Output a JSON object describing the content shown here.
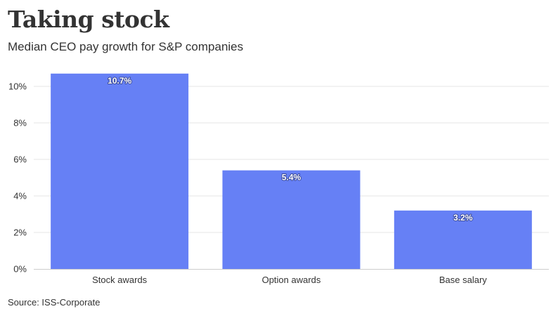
{
  "title": "Taking stock",
  "subtitle": "Median CEO pay growth for S&P companies",
  "source": "Source: ISS-Corporate",
  "colors": {
    "bar": "#6680f5",
    "gridline": "#e6e6e6",
    "baseline": "#cccccc",
    "text": "#333333"
  },
  "chart_data": {
    "type": "bar",
    "title": "Taking stock",
    "subtitle": "Median CEO pay growth for S&P companies",
    "categories": [
      "Stock awards",
      "Option awards",
      "Base salary"
    ],
    "values": [
      10.7,
      5.4,
      3.2
    ],
    "data_labels": [
      "10.7%",
      "5.4%",
      "3.2%"
    ],
    "xlabel": "",
    "ylabel": "",
    "ylim": [
      0,
      11
    ],
    "yticks": [
      0,
      2,
      4,
      6,
      8,
      10
    ],
    "ytick_labels": [
      "0%",
      "2%",
      "4%",
      "6%",
      "8%",
      "10%"
    ],
    "grid": true,
    "legend": "none"
  }
}
